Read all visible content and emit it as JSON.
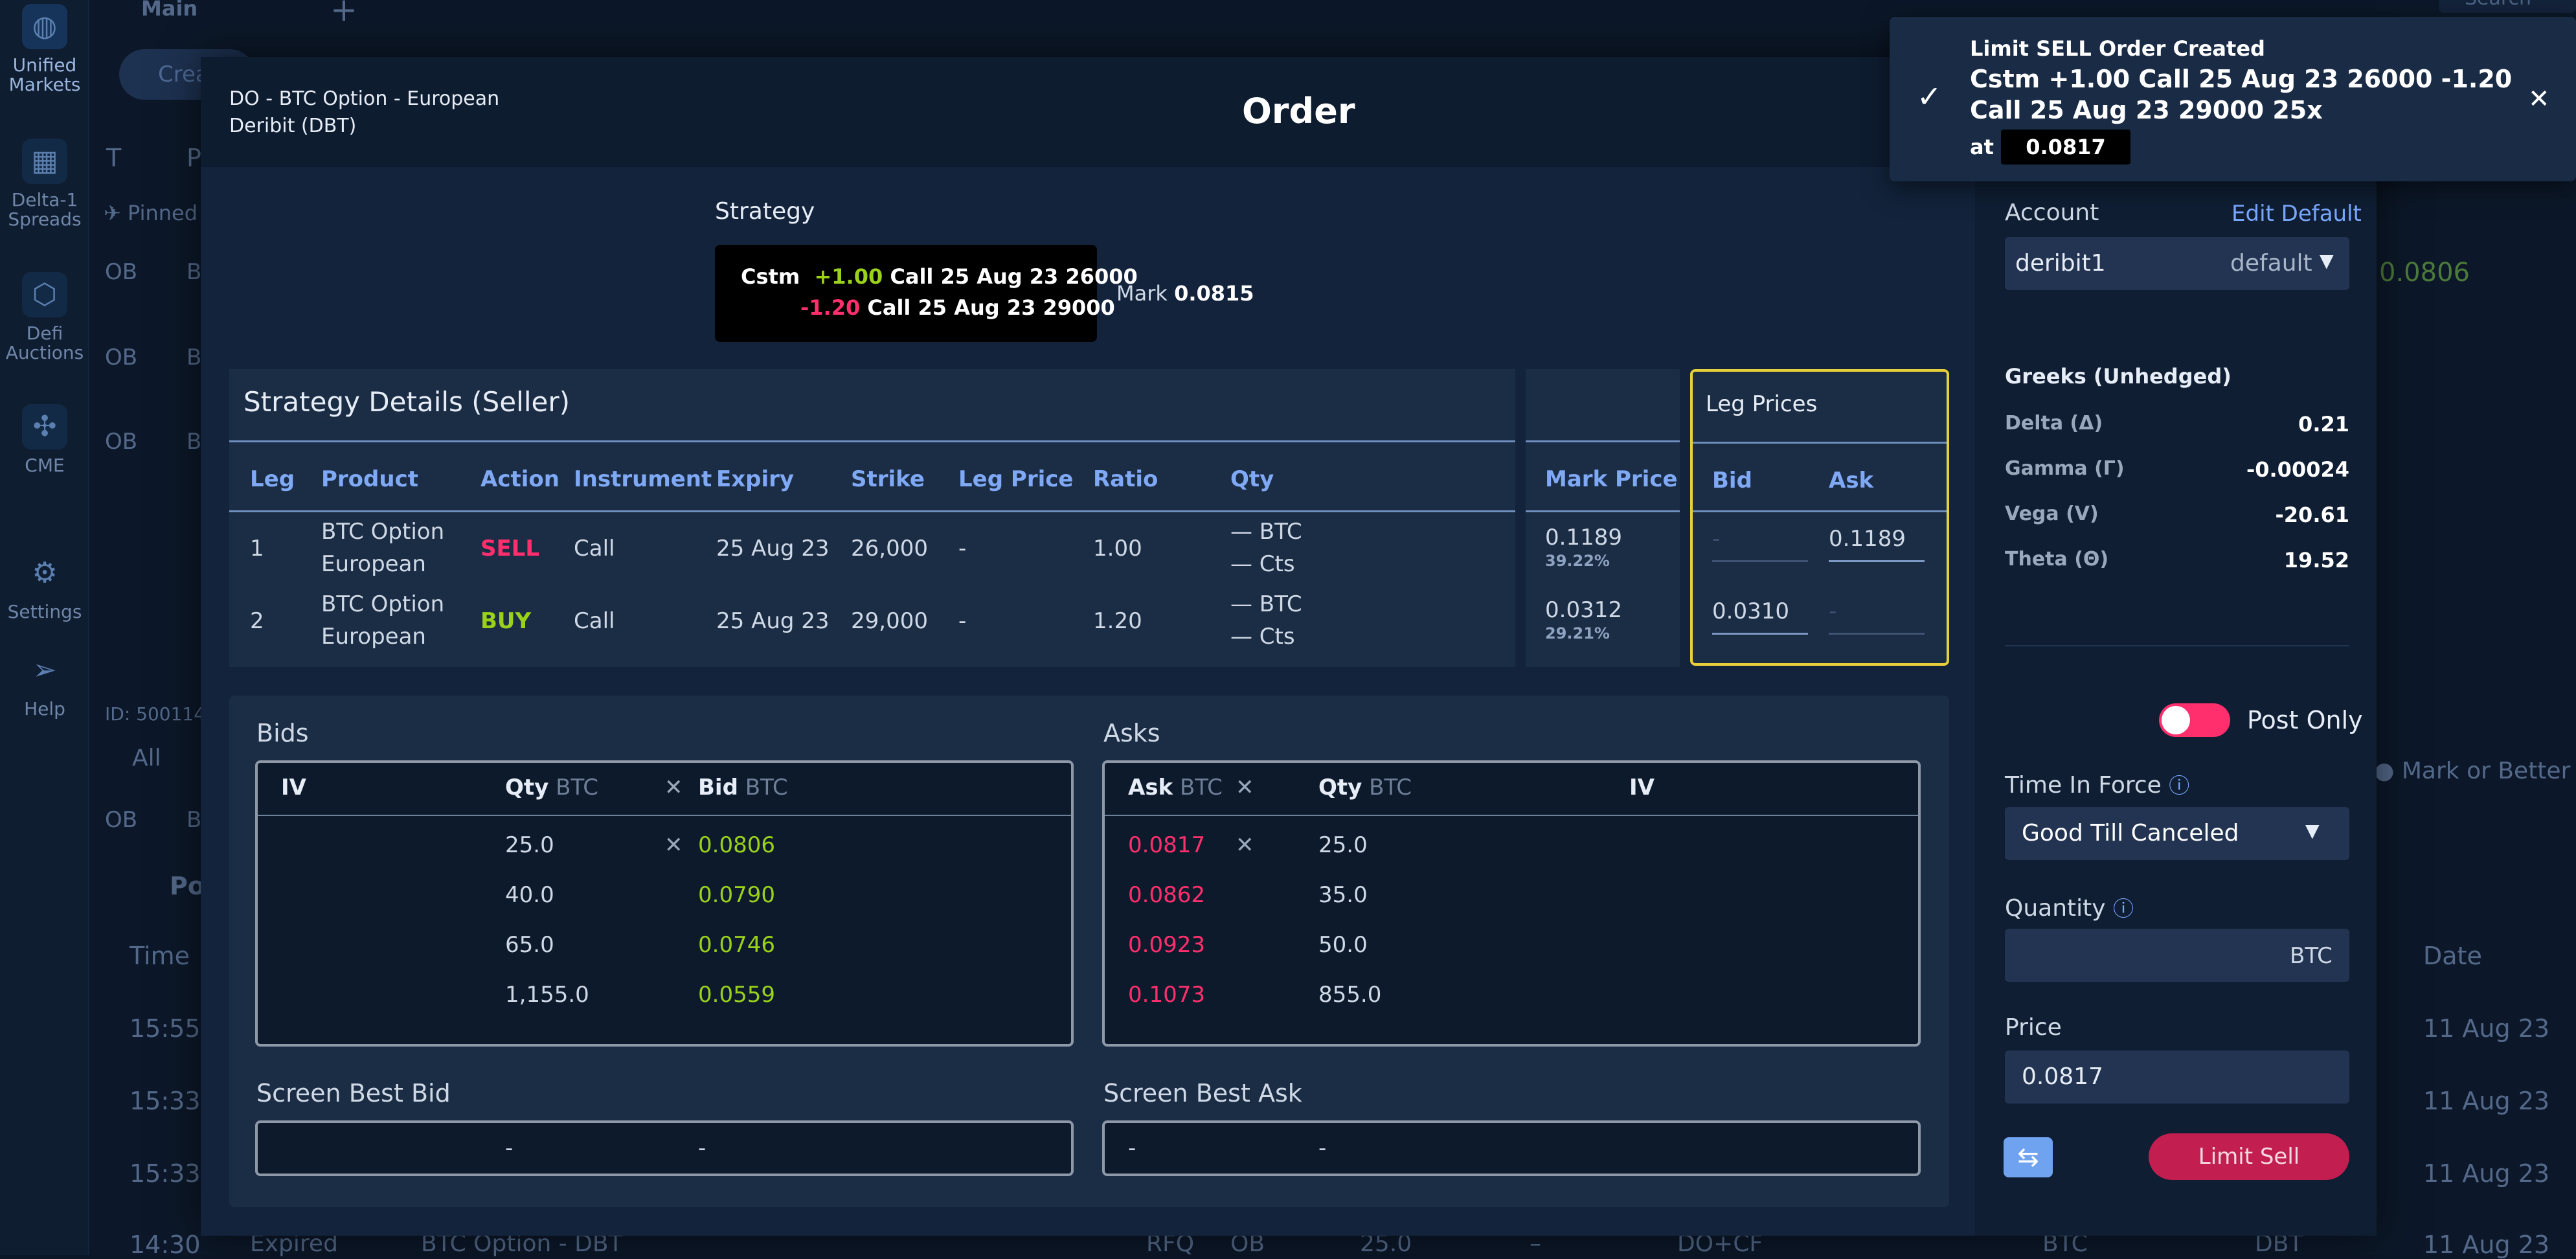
{
  "sidebar": {
    "items": [
      {
        "label_line1": "Unified",
        "label_line2": "Markets",
        "icon": "globe-icon"
      },
      {
        "label_line1": "Delta-1",
        "label_line2": "Spreads",
        "icon": "grid-icon"
      },
      {
        "label_line1": "Defi",
        "label_line2": "Auctions",
        "icon": "hexagon-icon"
      },
      {
        "label_line1": "CME",
        "label_line2": "",
        "icon": "network-icon"
      },
      {
        "label_line1": "Settings",
        "label_line2": "",
        "icon": "gear-icon"
      },
      {
        "label_line1": "Help",
        "label_line2": "",
        "icon": "send-icon"
      }
    ]
  },
  "background": {
    "tab_main": "Main",
    "tab_add": "+",
    "search_placeholder": "Search",
    "create_btn": "Crea",
    "col_t": "T",
    "col_p": "P",
    "pinned": "Pinned",
    "row_ob": "OB",
    "row_b": "B",
    "id_label": "ID: 500114",
    "all_label": "All",
    "pos_label": "Po",
    "time_label": "Time",
    "times": [
      "15:55",
      "15:33",
      "15:33",
      "14:30"
    ],
    "bottom_status": "Expired",
    "bottom_product": "BTC Option - DBT",
    "bottom_rfq": "RFQ",
    "bottom_ob": "OB",
    "bottom_qty": "25.0",
    "bottom_dash": "–",
    "bottom_docf": "DO+CF",
    "bottom_btc": "BTC",
    "bottom_dbt": "DBT",
    "date_label": "Date",
    "dates": [
      "11 Aug 23",
      "11 Aug 23",
      "11 Aug 23",
      "11 Aug 23"
    ],
    "right_price": "0.0806",
    "mark_or_better": "Mark or Better"
  },
  "modal": {
    "instrument_line1": "DO - BTC Option - European",
    "instrument_line2": "Deribit (DBT)",
    "title": "Order",
    "strategy_label": "Strategy",
    "strategy_line1_prefix": "Cstm",
    "strategy_line1_ratio": "+1.00",
    "strategy_line1_desc": "Call 25 Aug 23 26000",
    "strategy_line2_ratio": "-1.20",
    "strategy_line2_desc": "Call 25 Aug 23 29000",
    "mark_label": "Mark",
    "mark_value": "0.0815",
    "details_title": "Strategy Details (Seller)",
    "headers": [
      "Leg",
      "Product",
      "Action",
      "Instrument",
      "Expiry",
      "Strike",
      "Leg Price",
      "Ratio",
      "Qty"
    ],
    "mark_price_header": "Mark Price",
    "leg_prices_title": "Leg Prices",
    "bid_header": "Bid",
    "ask_header": "Ask",
    "legs": [
      {
        "leg": "1",
        "product_l1": "BTC Option",
        "product_l2": "European",
        "action": "SELL",
        "instrument": "Call",
        "expiry": "25 Aug 23",
        "strike": "26,000",
        "leg_price": "-",
        "ratio": "1.00",
        "qty_l1": "— BTC",
        "qty_l2": "— Cts",
        "mark": "0.1189",
        "mark_iv": "39.22%",
        "bid": "-",
        "ask": "0.1189"
      },
      {
        "leg": "2",
        "product_l1": "BTC Option",
        "product_l2": "European",
        "action": "BUY",
        "instrument": "Call",
        "expiry": "25 Aug 23",
        "strike": "29,000",
        "leg_price": "-",
        "ratio": "1.20",
        "qty_l1": "— BTC",
        "qty_l2": "— Cts",
        "mark": "0.0312",
        "mark_iv": "29.21%",
        "bid": "0.0310",
        "ask": "-"
      }
    ],
    "bids_label": "Bids",
    "asks_label": "Asks",
    "bids_headers": {
      "iv": "IV",
      "qty": "Qty",
      "qty_unit": "BTC",
      "x": "✕",
      "bid": "Bid",
      "bid_unit": "BTC"
    },
    "asks_headers": {
      "ask": "Ask",
      "ask_unit": "BTC",
      "x": "✕",
      "qty": "Qty",
      "qty_unit": "BTC",
      "iv": "IV"
    },
    "bids": [
      {
        "qty": "25.0",
        "mark": "✕",
        "price": "0.0806"
      },
      {
        "qty": "40.0",
        "mark": "",
        "price": "0.0790"
      },
      {
        "qty": "65.0",
        "mark": "",
        "price": "0.0746"
      },
      {
        "qty": "1,155.0",
        "mark": "",
        "price": "0.0559"
      }
    ],
    "asks": [
      {
        "price": "0.0817",
        "mark": "✕",
        "qty": "25.0"
      },
      {
        "price": "0.0862",
        "mark": "",
        "qty": "35.0"
      },
      {
        "price": "0.0923",
        "mark": "",
        "qty": "50.0"
      },
      {
        "price": "0.1073",
        "mark": "",
        "qty": "855.0"
      }
    ],
    "screen_best_bid_label": "Screen Best Bid",
    "screen_best_ask_label": "Screen Best Ask",
    "screen_best_bid": [
      "-",
      "-"
    ],
    "screen_best_ask": [
      "-",
      "-"
    ]
  },
  "order_panel": {
    "account_label": "Account",
    "edit_default": "Edit Default",
    "account_value": "deribit1",
    "account_tag": "default",
    "greeks_title": "Greeks (Unhedged)",
    "greeks": [
      {
        "name": "Delta (Δ)",
        "value": "0.21"
      },
      {
        "name": "Gamma (Γ)",
        "value": "-0.00024"
      },
      {
        "name": "Vega (V)",
        "value": "-20.61"
      },
      {
        "name": "Theta (Θ)",
        "value": "19.52"
      }
    ],
    "post_only": "Post Only",
    "tif_label": "Time In Force",
    "tif_value": "Good Till Canceled",
    "quantity_label": "Quantity",
    "quantity_unit": "BTC",
    "price_label": "Price",
    "price_value": "0.0817",
    "limit_sell": "Limit Sell"
  },
  "toast": {
    "title": "Limit SELL Order Created",
    "line1": "Cstm +1.00 Call 25 Aug 23 26000 -1.20",
    "line2": "Call 25 Aug 23 29000  25x",
    "at_label": "at",
    "at_value": "0.0817"
  }
}
